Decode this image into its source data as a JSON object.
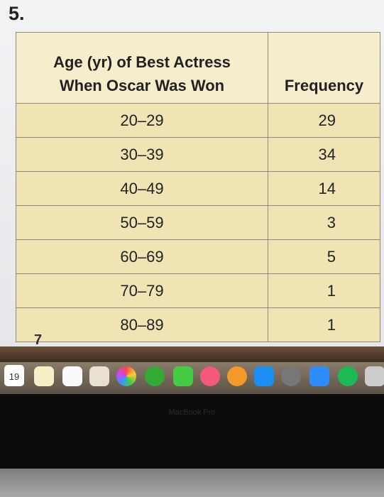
{
  "problem_number": "5.",
  "table": {
    "headers": [
      "Age (yr) of Best Actress\nWhen Oscar Was Won",
      "Frequency"
    ],
    "rows": [
      [
        "20–29",
        29
      ],
      [
        "30–39",
        34
      ],
      [
        "40–49",
        14
      ],
      [
        "50–59",
        3
      ],
      [
        "60–69",
        5
      ],
      [
        "70–79",
        1
      ],
      [
        "80–89",
        1
      ]
    ]
  },
  "next_problem_number": "7",
  "dock": {
    "calendar_day": "19"
  },
  "laptop_label": "MacBook Pro"
}
